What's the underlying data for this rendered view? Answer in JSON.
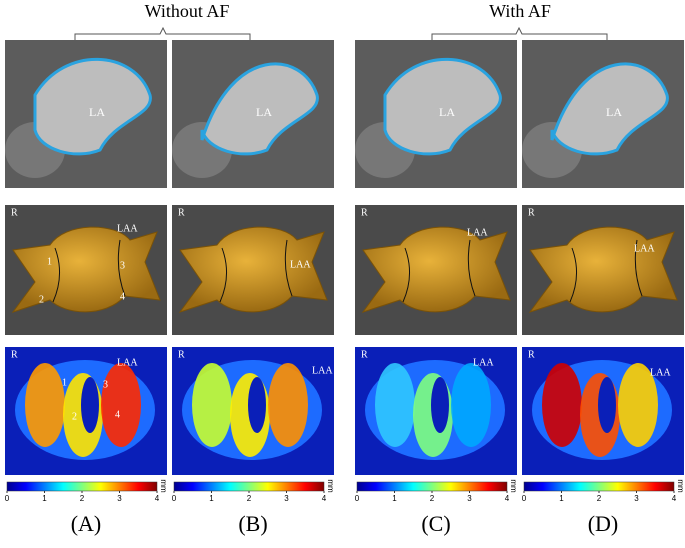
{
  "header": {
    "groups": [
      {
        "title": "Without AF"
      },
      {
        "title": "With AF"
      }
    ]
  },
  "panels": [
    {
      "label": "(A)",
      "ct_label": "LA",
      "render_labels": [
        "R",
        "LAA",
        "1",
        "2",
        "3",
        "4"
      ],
      "map_labels": [
        "R",
        "LAA",
        "1",
        "2",
        "3",
        "4"
      ]
    },
    {
      "label": "(B)",
      "ct_label": "LA",
      "render_labels": [
        "R",
        "LAA"
      ],
      "map_labels": [
        "R",
        "LAA"
      ]
    },
    {
      "label": "(C)",
      "ct_label": "LA",
      "render_labels": [
        "R",
        "LAA"
      ],
      "map_labels": [
        "R",
        "LAA"
      ]
    },
    {
      "label": "(D)",
      "ct_label": "LA",
      "render_labels": [
        "R",
        "LAA"
      ],
      "map_labels": [
        "R",
        "LAA"
      ]
    }
  ],
  "colorbar": {
    "ticks": [
      0,
      1,
      2,
      3,
      4
    ],
    "unit": "mm"
  }
}
